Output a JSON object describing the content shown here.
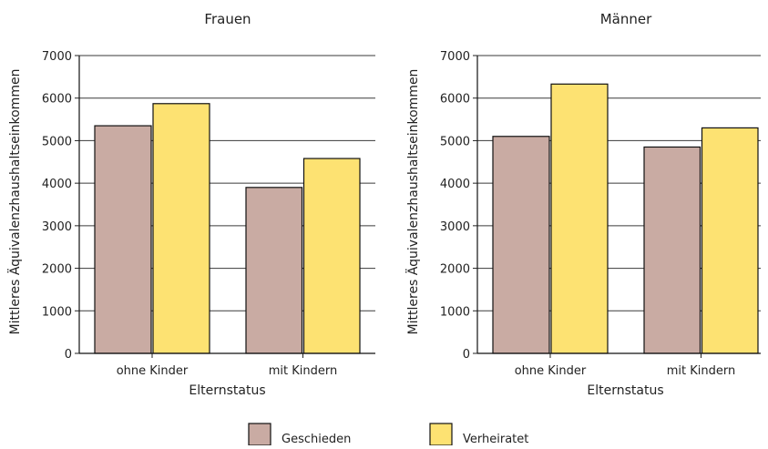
{
  "chart_data": [
    {
      "type": "bar",
      "title": "Frauen",
      "xlabel": "Elternstatus",
      "ylabel": "Mittleres Äquivalenzhaushaltseinkommen",
      "categories": [
        "ohne Kinder",
        "mit Kindern"
      ],
      "ylim": [
        0,
        7000
      ],
      "yticks": [
        0,
        1000,
        2000,
        3000,
        4000,
        5000,
        6000,
        7000
      ],
      "grid": true,
      "series": [
        {
          "name": "Geschieden",
          "color": "#c9aba3",
          "values": [
            5350,
            3900
          ]
        },
        {
          "name": "Verheiratet",
          "color": "#fde272",
          "values": [
            5870,
            4580
          ]
        }
      ]
    },
    {
      "type": "bar",
      "title": "Männer",
      "xlabel": "Elternstatus",
      "ylabel": "Mittleres Äquivalenzhaushaltseinkommen",
      "categories": [
        "ohne Kinder",
        "mit Kindern"
      ],
      "ylim": [
        0,
        7000
      ],
      "yticks": [
        0,
        1000,
        2000,
        3000,
        4000,
        5000,
        6000,
        7000
      ],
      "grid": true,
      "series": [
        {
          "name": "Geschieden",
          "color": "#c9aba3",
          "values": [
            5100,
            4850
          ]
        },
        {
          "name": "Verheiratet",
          "color": "#fde272",
          "values": [
            6330,
            5300
          ]
        }
      ]
    }
  ],
  "legend": {
    "placement": "bottom",
    "items": [
      {
        "label": "Geschieden",
        "color": "#c9aba3"
      },
      {
        "label": "Verheiratet",
        "color": "#fde272"
      }
    ]
  }
}
